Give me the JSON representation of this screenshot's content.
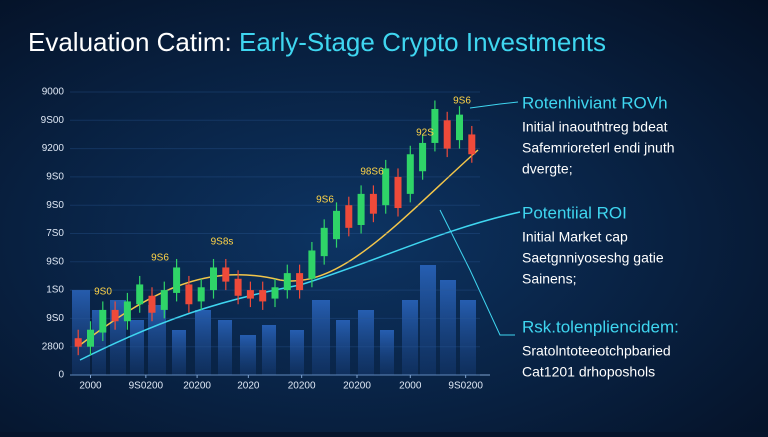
{
  "chart_data": {
    "type": "candlestick",
    "title": [
      "Evaluation Catim:",
      "Early-Stage Crypto Investments"
    ],
    "x": [
      0.4,
      1,
      1.6,
      2.2,
      2.8,
      3.4,
      4,
      4.6,
      5.2,
      5.8,
      6.4,
      7,
      7.6,
      8.2,
      8.8,
      9.4,
      10,
      10.6,
      11.2,
      11.8,
      12.4,
      13,
      13.6,
      14.2,
      14.8,
      15.4,
      16,
      16.6,
      17.2,
      17.8,
      18.4,
      19,
      19.6
    ],
    "open": [
      1.3,
      1.0,
      1.5,
      2.3,
      1.9,
      2.5,
      2.8,
      2.3,
      2.9,
      3.2,
      2.6,
      3.0,
      3.8,
      3.4,
      3.0,
      3.0,
      2.7,
      3.0,
      3.6,
      3.4,
      4.2,
      4.8,
      6.0,
      5.3,
      6.4,
      6.0,
      7.0,
      6.4,
      7.2,
      8.2,
      9.0,
      8.3,
      8.5
    ],
    "high": [
      1.6,
      1.9,
      2.6,
      2.6,
      2.9,
      3.5,
      3.1,
      3.3,
      4.1,
      3.5,
      3.4,
      4.1,
      4.1,
      3.7,
      3.3,
      3.3,
      3.4,
      3.9,
      3.9,
      4.7,
      5.5,
      6.1,
      6.3,
      6.7,
      6.7,
      7.6,
      7.3,
      8.1,
      8.5,
      9.7,
      9.3,
      9.5,
      8.8
    ],
    "low": [
      0.7,
      0.7,
      1.2,
      1.6,
      1.6,
      2.2,
      1.9,
      2.0,
      2.6,
      2.2,
      2.3,
      2.7,
      3.0,
      2.5,
      2.4,
      2.3,
      2.4,
      2.7,
      2.7,
      3.1,
      3.9,
      4.5,
      4.9,
      5.0,
      5.4,
      5.7,
      5.6,
      6.1,
      6.9,
      7.9,
      7.7,
      8.0,
      7.5
    ],
    "close": [
      1.0,
      1.6,
      2.3,
      1.9,
      2.6,
      3.2,
      2.2,
      3.0,
      3.8,
      2.5,
      3.1,
      3.8,
      3.3,
      2.8,
      2.7,
      2.6,
      3.1,
      3.6,
      3.0,
      4.4,
      5.2,
      5.8,
      5.2,
      6.4,
      5.7,
      7.3,
      5.9,
      7.8,
      8.2,
      9.4,
      8.0,
      9.2,
      7.8
    ],
    "up_color": "#2fd468",
    "down_color": "#ee4a3a",
    "xlim": [
      0,
      20
    ],
    "xticks": [
      {
        "value": 1,
        "label": "2000"
      },
      {
        "value": 3.7,
        "label": "9S0200"
      },
      {
        "value": 6.2,
        "label": "20200"
      },
      {
        "value": 8.7,
        "label": "2020"
      },
      {
        "value": 11.3,
        "label": "20200"
      },
      {
        "value": 14,
        "label": "20200"
      },
      {
        "value": 16.6,
        "label": "2000"
      },
      {
        "value": 19.3,
        "label": "9S0200"
      }
    ],
    "ylim": [
      0,
      10
    ],
    "yticks": [
      0,
      {
        "value": 1,
        "label": "2800"
      },
      {
        "value": 2,
        "label": "9S0"
      },
      {
        "value": 3,
        "label": "1S0"
      },
      {
        "value": 4,
        "label": "9S0"
      },
      {
        "value": 5,
        "label": "7S0"
      },
      {
        "value": 6,
        "label": "9S0"
      },
      {
        "value": 7,
        "label": "9S0"
      },
      {
        "value": 8,
        "label": "9200"
      },
      {
        "value": 9,
        "label": "9S00"
      },
      {
        "value": 10,
        "label": "9000"
      }
    ],
    "point_labels": [
      "9S0",
      "9S6",
      "9S8s",
      "9S6",
      "98S6",
      "92S",
      "9S6"
    ],
    "annotations": [
      {
        "heading": "Rotenhiviant ROVh",
        "body": [
          "Initial inaouthtreg bdeat",
          "Safemrioreterl endi jnuth",
          "dvergte;"
        ]
      },
      {
        "heading": "Potentiial ROI",
        "body": [
          "Initial Market cap",
          "Saetgnniyoseshg gatie",
          "Sainens;"
        ]
      },
      {
        "heading": "Rsk.tolenpliencidem:",
        "body": [
          "Sratolntoteeotchpbaried",
          "Cat1201 drhoposhols"
        ]
      }
    ]
  }
}
